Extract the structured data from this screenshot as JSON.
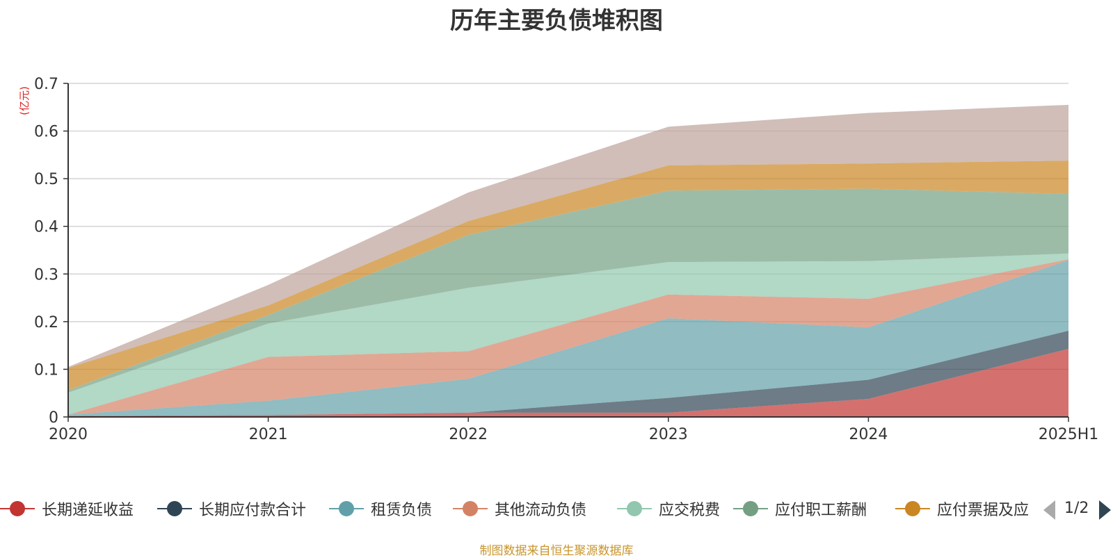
{
  "title": "历年主要负债堆积图",
  "source": "制图数据来自恒生聚源数据库",
  "pager": {
    "text": "1/2"
  },
  "chart_data": {
    "type": "area",
    "stacked": true,
    "title": "历年主要负债堆积图",
    "ylabel": "(亿元)",
    "ylim": [
      0,
      0.7
    ],
    "yticks": [
      "0",
      "0.1",
      "0.2",
      "0.3",
      "0.4",
      "0.5",
      "0.6",
      "0.7"
    ],
    "grid": true,
    "legend_position": "bottom",
    "categories": [
      "2020",
      "2021",
      "2022",
      "2023",
      "2024",
      "2025H1"
    ],
    "series": [
      {
        "name": "长期递延收益",
        "color": "#c23531",
        "values": [
          0.002,
          0.004,
          0.009,
          0.009,
          0.038,
          0.143
        ]
      },
      {
        "name": "长期应付款合计",
        "color": "#2f4554",
        "values": [
          0.0,
          0.0,
          0.0,
          0.031,
          0.04,
          0.038
        ]
      },
      {
        "name": "租赁负债",
        "color": "#61a0a8",
        "values": [
          0.003,
          0.03,
          0.071,
          0.167,
          0.11,
          0.148
        ]
      },
      {
        "name": "其他流动负债",
        "color": "#d48265",
        "values": [
          0.0,
          0.092,
          0.058,
          0.05,
          0.06,
          0.002
        ]
      },
      {
        "name": "应交税费",
        "color": "#91c7ae",
        "values": [
          0.046,
          0.07,
          0.133,
          0.068,
          0.079,
          0.012
        ]
      },
      {
        "name": "应付职工薪酬",
        "color": "#749f83",
        "values": [
          0.005,
          0.018,
          0.111,
          0.15,
          0.152,
          0.125
        ]
      },
      {
        "name": "应付票据及应付账款",
        "color": "#ca8622",
        "values": [
          0.047,
          0.02,
          0.029,
          0.053,
          0.053,
          0.07
        ]
      },
      {
        "values": [
          0.002,
          0.043,
          0.06,
          0.081,
          0.106,
          0.117
        ],
        "color": "#bda29a"
      }
    ]
  },
  "legend": {
    "items": [
      {
        "label": "长期递延收益",
        "color": "#c23531"
      },
      {
        "label": "长期应付款合计",
        "color": "#2f4554"
      },
      {
        "label": "租赁负债",
        "color": "#61a0a8"
      },
      {
        "label": "其他流动负债",
        "color": "#d48265"
      },
      {
        "label": "应交税费",
        "color": "#91c7ae"
      },
      {
        "label": "应付职工薪酬",
        "color": "#749f83"
      },
      {
        "label": "应付票据及应",
        "color": "#ca8622"
      }
    ]
  }
}
